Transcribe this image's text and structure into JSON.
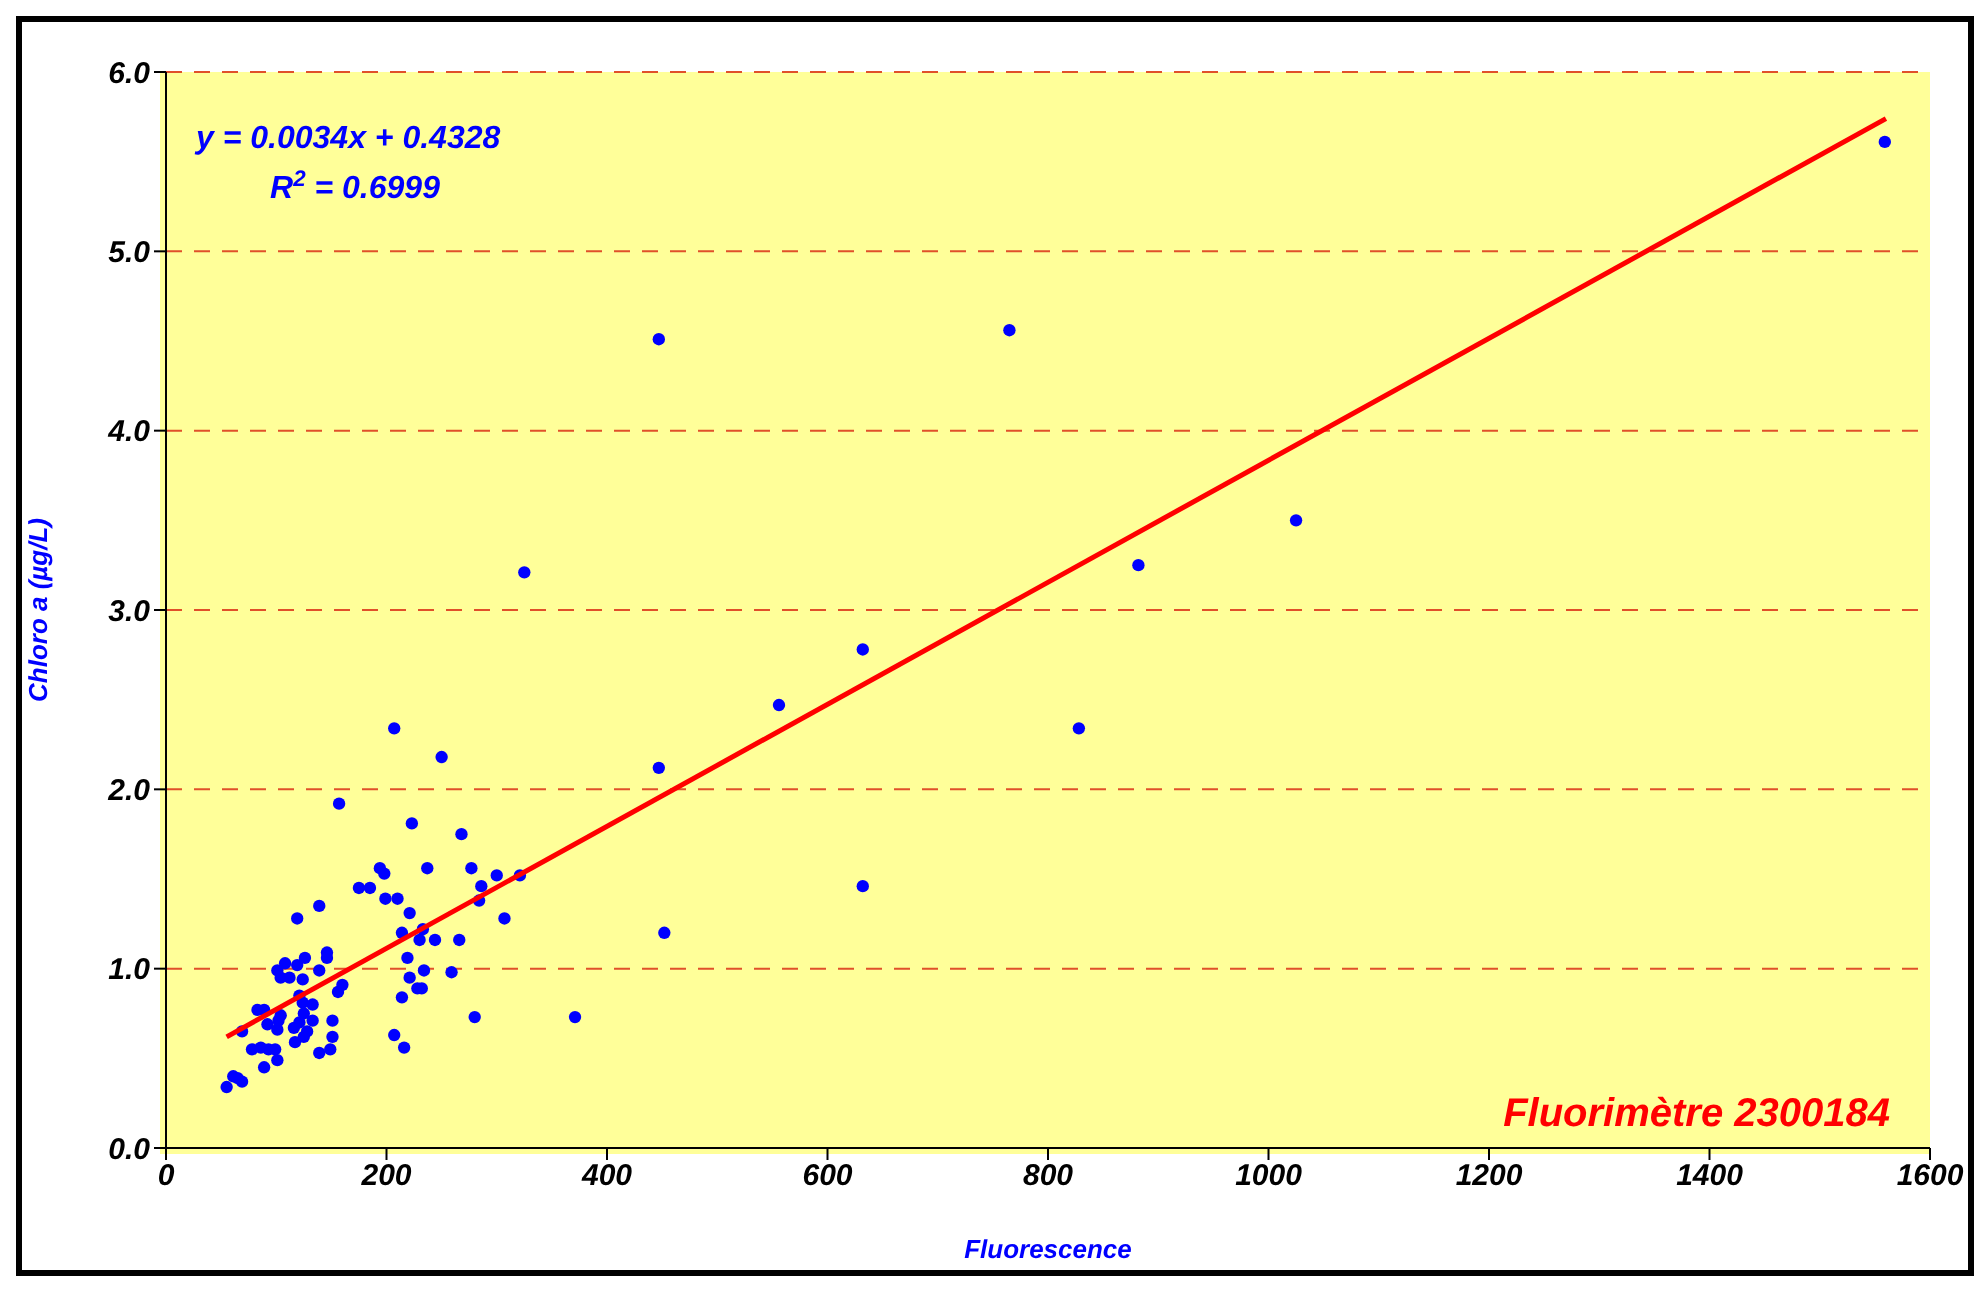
{
  "chart_data": {
    "type": "scatter",
    "xlabel": "Fluorescence",
    "ylabel": "Chloro a (µg/L)",
    "xlim": [
      0,
      1600
    ],
    "xticks": [
      0,
      200,
      400,
      600,
      800,
      1000,
      1200,
      1400,
      1600
    ],
    "ylim": [
      0,
      6
    ],
    "yticks": [
      {
        "value": 0,
        "label": "0.0"
      },
      {
        "value": 1,
        "label": "1.0"
      },
      {
        "value": 2,
        "label": "2.0"
      },
      {
        "value": 3,
        "label": "3.0"
      },
      {
        "value": 4,
        "label": "4.0"
      },
      {
        "value": 5,
        "label": "5.0"
      },
      {
        "value": 6,
        "label": "6.0"
      }
    ],
    "grid": "y",
    "series": [
      {
        "type": "scatter",
        "marker": "circle",
        "color": "#0000ff",
        "x": [
          207,
          250,
          447,
          157,
          223,
          268,
          194,
          198,
          237,
          277,
          300,
          321,
          175,
          185,
          199,
          210,
          286,
          284,
          221,
          119,
          139,
          307,
          214,
          233,
          230,
          244,
          266,
          452,
          126,
          146,
          146,
          119,
          139,
          101,
          108,
          104,
          112,
          124,
          219,
          234,
          259,
          221,
          228,
          232,
          214,
          160,
          156,
          121,
          124,
          133,
          83,
          89,
          104,
          102,
          92,
          125,
          121,
          133,
          151,
          101,
          116,
          128,
          125,
          69,
          151,
          117,
          207,
          280,
          371,
          216,
          78,
          86,
          93,
          99,
          101,
          89,
          139,
          149,
          61,
          65,
          69,
          55,
          325,
          447,
          556,
          632,
          632,
          765,
          828,
          882,
          1025,
          1559
        ],
        "values": [
          2.34,
          2.18,
          2.12,
          1.92,
          1.81,
          1.75,
          1.56,
          1.53,
          1.56,
          1.56,
          1.52,
          1.52,
          1.45,
          1.45,
          1.39,
          1.39,
          1.46,
          1.38,
          1.31,
          1.28,
          1.35,
          1.28,
          1.2,
          1.22,
          1.16,
          1.16,
          1.16,
          1.2,
          1.06,
          1.09,
          1.06,
          1.02,
          0.99,
          0.99,
          1.03,
          0.95,
          0.95,
          0.94,
          1.06,
          0.99,
          0.98,
          0.95,
          0.89,
          0.89,
          0.84,
          0.91,
          0.87,
          0.85,
          0.81,
          0.8,
          0.77,
          0.77,
          0.74,
          0.71,
          0.69,
          0.75,
          0.7,
          0.71,
          0.71,
          0.66,
          0.67,
          0.65,
          0.62,
          0.65,
          0.62,
          0.59,
          0.63,
          0.73,
          0.73,
          0.56,
          0.55,
          0.56,
          0.55,
          0.55,
          0.49,
          0.45,
          0.53,
          0.55,
          0.4,
          0.39,
          0.37,
          0.34,
          3.21,
          4.51,
          2.47,
          2.78,
          1.46,
          4.56,
          2.34,
          3.25,
          3.5,
          5.61
        ]
      },
      {
        "type": "line",
        "color": "#ff0000",
        "x": [
          55,
          1560
        ],
        "values": [
          0.62,
          5.74
        ]
      }
    ],
    "annotations": [
      "y = 0.0034x + 0.4328",
      "R$^{2}$ = 0.6999",
      "Fluorimètre 2300184"
    ]
  }
}
